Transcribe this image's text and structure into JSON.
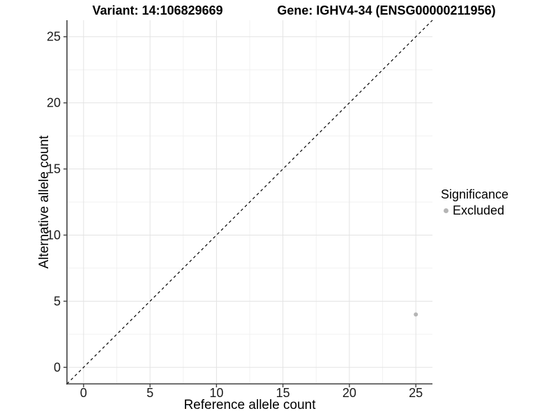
{
  "chart_data": {
    "type": "scatter",
    "title_left": "Variant: 14:106829669",
    "title_right": "Gene: IGHV4-34 (ENSG00000211956)",
    "xlabel": "Reference allele count",
    "ylabel": "Alternative allele count",
    "xlim": [
      -1.25,
      26.25
    ],
    "ylim": [
      -1.25,
      26.25
    ],
    "xticks": [
      0,
      5,
      10,
      15,
      20,
      25
    ],
    "yticks": [
      0,
      5,
      10,
      15,
      20,
      25
    ],
    "grid": "major-and-minor",
    "legend_position": "right",
    "legend": {
      "title": "Significance"
    },
    "reference_line": {
      "type": "identity",
      "style": "dashed",
      "color": "#000000"
    },
    "series": [
      {
        "name": "Excluded",
        "color": "#b5b5b5",
        "points": [
          {
            "x": 25,
            "y": 4
          }
        ]
      }
    ],
    "colors": {
      "grid_major": "#e3e3e3",
      "grid_minor": "#f1f1f1",
      "axis_line": "#404040",
      "tick_text": "#1a1a1a",
      "background": "#ffffff"
    }
  }
}
